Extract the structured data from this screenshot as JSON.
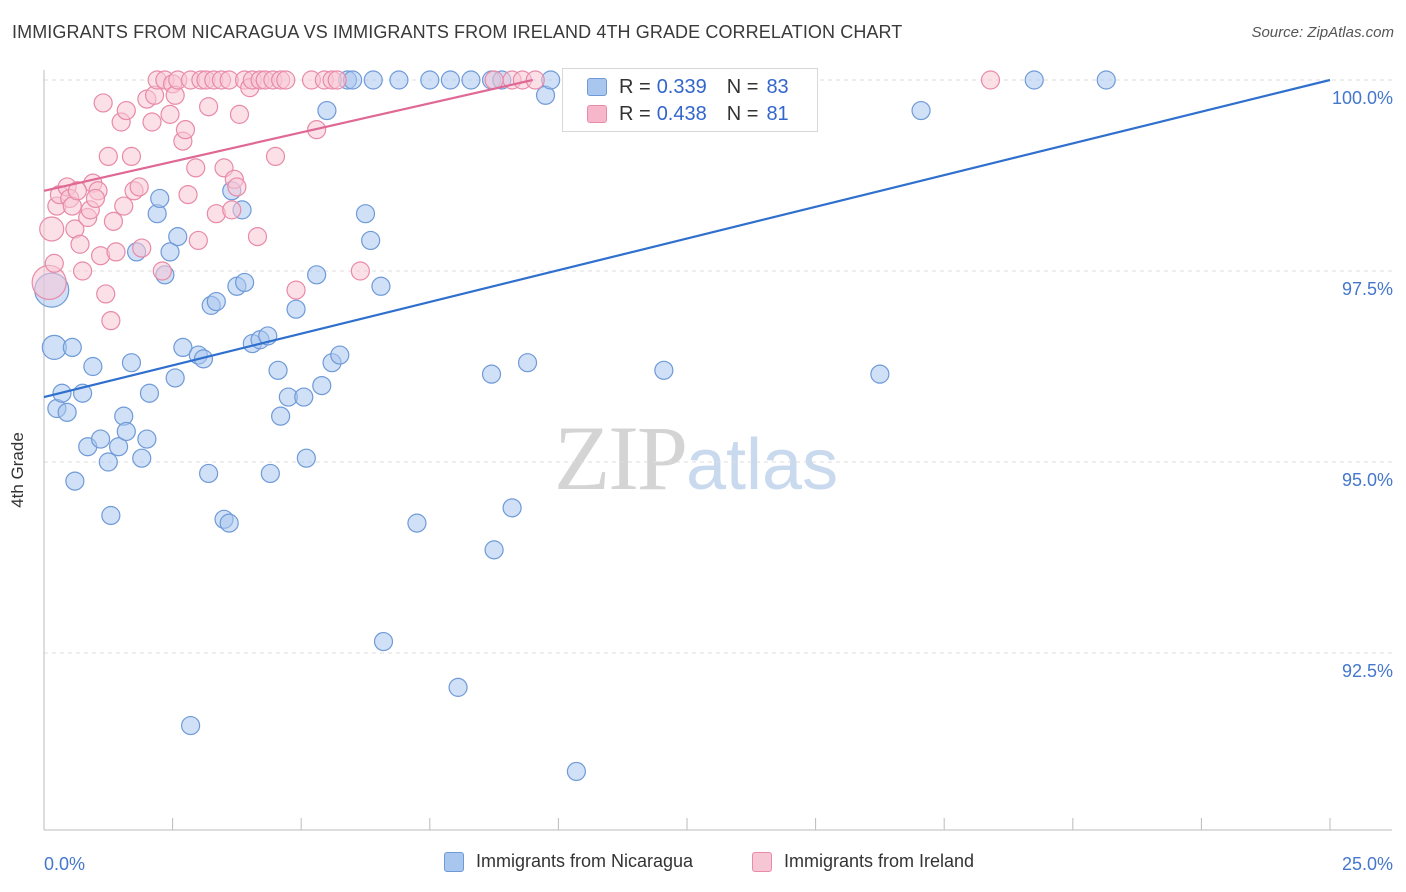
{
  "header": {
    "title": "IMMIGRANTS FROM NICARAGUA VS IMMIGRANTS FROM IRELAND 4TH GRADE CORRELATION CHART",
    "source": "Source: ZipAtlas.com"
  },
  "watermark": {
    "zip": "ZIP",
    "atlas": "atlas"
  },
  "legend": {
    "rows": [
      {
        "r_label": "R =",
        "r_value": "0.339",
        "n_label": "N =",
        "n_value": "83",
        "color": "#a9c6ef",
        "border": "#6f9ad8"
      },
      {
        "r_label": "R =",
        "r_value": "0.438",
        "n_label": "N =",
        "n_value": "81",
        "color": "#f7b7cb",
        "border": "#e88aa8"
      }
    ]
  },
  "bottom_legend": [
    {
      "label": "Immigrants from Nicaragua",
      "color": "#a9c6ef",
      "border": "#6f9ad8"
    },
    {
      "label": "Immigrants from Ireland",
      "color": "#f7c6d5",
      "border": "#e88aa8"
    }
  ],
  "chart_data": {
    "type": "scatter",
    "title": "IMMIGRANTS FROM NICARAGUA VS IMMIGRANTS FROM IRELAND 4TH GRADE CORRELATION CHART",
    "xlabel": "",
    "ylabel": "4th Grade",
    "xlim": [
      0,
      25
    ],
    "ylim": [
      90.0,
      100.45
    ],
    "x_tick_labels": [
      {
        "value": 0,
        "label": "0.0%"
      },
      {
        "value": 25,
        "label": "25.0%"
      }
    ],
    "y_tick_labels": [
      {
        "value": 100.0,
        "label": "100.0%"
      },
      {
        "value": 97.5,
        "label": "97.5%"
      },
      {
        "value": 95.0,
        "label": "95.0%"
      },
      {
        "value": 92.5,
        "label": "92.5%"
      }
    ],
    "series": [
      {
        "name": "Immigrants from Nicaragua",
        "color": "#6f9ad8",
        "fill": "#a9c6ef",
        "trend": {
          "x": [
            0,
            25
          ],
          "y": [
            95.85,
            100.0
          ],
          "color": "#2f6fce"
        },
        "points": [
          [
            0.15,
            97.25,
            3
          ],
          [
            0.2,
            96.5,
            2
          ],
          [
            0.25,
            95.7,
            1
          ],
          [
            0.35,
            95.9,
            1
          ],
          [
            0.45,
            95.65,
            1
          ],
          [
            0.55,
            96.5,
            1
          ],
          [
            0.6,
            94.75,
            1
          ],
          [
            0.75,
            95.9,
            1
          ],
          [
            0.85,
            95.2,
            1
          ],
          [
            0.95,
            96.25,
            1
          ],
          [
            1.1,
            95.3,
            1
          ],
          [
            1.25,
            95.0,
            1
          ],
          [
            1.3,
            94.3,
            1
          ],
          [
            1.45,
            95.2,
            1
          ],
          [
            1.55,
            95.6,
            1
          ],
          [
            1.6,
            95.4,
            1
          ],
          [
            1.7,
            96.3,
            1
          ],
          [
            1.8,
            97.75,
            1
          ],
          [
            1.9,
            95.05,
            1
          ],
          [
            2.0,
            95.3,
            1
          ],
          [
            2.05,
            95.9,
            1
          ],
          [
            2.2,
            98.25,
            1
          ],
          [
            2.25,
            98.45,
            1
          ],
          [
            2.35,
            97.45,
            1
          ],
          [
            2.45,
            97.75,
            1
          ],
          [
            2.55,
            96.1,
            1
          ],
          [
            2.6,
            97.95,
            1
          ],
          [
            2.7,
            96.5,
            1
          ],
          [
            2.85,
            91.55,
            1
          ],
          [
            3.0,
            96.4,
            1
          ],
          [
            3.1,
            96.35,
            1
          ],
          [
            3.2,
            94.85,
            1
          ],
          [
            3.25,
            97.05,
            1
          ],
          [
            3.35,
            97.1,
            1
          ],
          [
            3.5,
            94.25,
            1
          ],
          [
            3.6,
            94.2,
            1
          ],
          [
            3.65,
            98.55,
            1
          ],
          [
            3.75,
            97.3,
            1
          ],
          [
            3.85,
            98.3,
            1
          ],
          [
            3.9,
            97.35,
            1
          ],
          [
            4.05,
            96.55,
            1
          ],
          [
            4.2,
            96.6,
            1
          ],
          [
            4.35,
            96.65,
            1
          ],
          [
            4.4,
            94.85,
            1
          ],
          [
            4.55,
            96.2,
            1
          ],
          [
            4.6,
            95.6,
            1
          ],
          [
            4.75,
            95.85,
            1
          ],
          [
            4.9,
            97.0,
            1
          ],
          [
            5.05,
            95.85,
            1
          ],
          [
            5.1,
            95.05,
            1
          ],
          [
            5.3,
            97.45,
            1
          ],
          [
            5.4,
            96.0,
            1
          ],
          [
            5.5,
            99.6,
            1
          ],
          [
            5.6,
            96.3,
            1
          ],
          [
            5.75,
            96.4,
            1
          ],
          [
            5.9,
            100.0,
            1
          ],
          [
            6.0,
            100.0,
            1
          ],
          [
            6.25,
            98.25,
            1
          ],
          [
            6.35,
            97.9,
            1
          ],
          [
            6.55,
            97.3,
            1
          ],
          [
            6.6,
            92.65,
            1
          ],
          [
            6.4,
            100.0,
            1
          ],
          [
            6.9,
            100.0,
            1
          ],
          [
            7.25,
            94.2,
            1
          ],
          [
            7.5,
            100.0,
            1
          ],
          [
            7.9,
            100.0,
            1
          ],
          [
            8.05,
            92.05,
            1
          ],
          [
            8.3,
            100.0,
            1
          ],
          [
            8.7,
            100.0,
            1
          ],
          [
            8.7,
            96.15,
            1
          ],
          [
            8.9,
            100.0,
            1
          ],
          [
            8.75,
            93.85,
            1
          ],
          [
            9.1,
            94.4,
            1
          ],
          [
            9.4,
            96.3,
            1
          ],
          [
            9.75,
            99.8,
            1
          ],
          [
            9.85,
            100.0,
            1
          ],
          [
            10.35,
            90.95,
            1
          ],
          [
            12.05,
            96.2,
            1
          ],
          [
            16.25,
            96.15,
            1
          ],
          [
            17.05,
            99.6,
            1
          ],
          [
            19.25,
            100.0,
            1
          ],
          [
            20.65,
            100.0,
            1
          ]
        ]
      },
      {
        "name": "Immigrants from Ireland",
        "color": "#e88aa8",
        "fill": "#f7c6d5",
        "trend": {
          "x": [
            0,
            9.5
          ],
          "y": [
            98.55,
            100.0
          ],
          "color": "#e06894"
        },
        "points": [
          [
            0.1,
            97.35,
            3
          ],
          [
            0.15,
            98.05,
            2
          ],
          [
            0.25,
            98.35,
            1
          ],
          [
            0.3,
            98.5,
            1
          ],
          [
            0.45,
            98.6,
            1
          ],
          [
            0.5,
            98.45,
            1
          ],
          [
            0.55,
            98.35,
            1
          ],
          [
            0.6,
            98.05,
            1
          ],
          [
            0.7,
            97.85,
            1
          ],
          [
            0.75,
            97.5,
            1
          ],
          [
            0.85,
            98.2,
            1
          ],
          [
            0.9,
            98.3,
            1
          ],
          [
            0.95,
            98.65,
            1
          ],
          [
            1.05,
            98.55,
            1
          ],
          [
            1.1,
            97.7,
            1
          ],
          [
            1.2,
            97.2,
            1
          ],
          [
            1.25,
            99.0,
            1
          ],
          [
            1.3,
            96.85,
            1
          ],
          [
            1.4,
            97.75,
            1
          ],
          [
            1.55,
            98.35,
            1
          ],
          [
            1.5,
            99.45,
            1
          ],
          [
            1.6,
            99.6,
            1
          ],
          [
            1.7,
            99.0,
            1
          ],
          [
            1.75,
            98.55,
            1
          ],
          [
            1.85,
            98.6,
            1
          ],
          [
            1.9,
            97.8,
            1
          ],
          [
            2.0,
            99.75,
            1
          ],
          [
            2.1,
            99.45,
            1
          ],
          [
            2.15,
            99.8,
            1
          ],
          [
            2.2,
            100.0,
            1
          ],
          [
            2.35,
            100.0,
            1
          ],
          [
            2.45,
            99.55,
            1
          ],
          [
            2.5,
            99.95,
            1
          ],
          [
            2.55,
            99.8,
            1
          ],
          [
            2.6,
            100.0,
            1
          ],
          [
            2.7,
            99.2,
            1
          ],
          [
            2.8,
            98.5,
            1
          ],
          [
            2.85,
            100.0,
            1
          ],
          [
            2.95,
            98.85,
            1
          ],
          [
            3.0,
            97.9,
            1
          ],
          [
            3.05,
            100.0,
            1
          ],
          [
            3.15,
            100.0,
            1
          ],
          [
            3.2,
            99.65,
            1
          ],
          [
            3.3,
            100.0,
            1
          ],
          [
            3.35,
            98.25,
            1
          ],
          [
            3.45,
            100.0,
            1
          ],
          [
            3.5,
            98.85,
            1
          ],
          [
            3.6,
            100.0,
            1
          ],
          [
            3.65,
            98.3,
            1
          ],
          [
            3.7,
            98.7,
            1
          ],
          [
            3.75,
            98.6,
            1
          ],
          [
            3.8,
            99.55,
            1
          ],
          [
            3.9,
            100.0,
            1
          ],
          [
            4.0,
            99.9,
            1
          ],
          [
            4.05,
            100.0,
            1
          ],
          [
            4.2,
            100.0,
            1
          ],
          [
            4.3,
            100.0,
            1
          ],
          [
            4.45,
            100.0,
            1
          ],
          [
            4.5,
            99.0,
            1
          ],
          [
            4.6,
            100.0,
            1
          ],
          [
            4.7,
            100.0,
            1
          ],
          [
            4.9,
            97.25,
            1
          ],
          [
            5.2,
            100.0,
            1
          ],
          [
            5.3,
            99.35,
            1
          ],
          [
            5.45,
            100.0,
            1
          ],
          [
            5.6,
            100.0,
            1
          ],
          [
            6.15,
            97.5,
            1
          ],
          [
            8.75,
            100.0,
            1
          ],
          [
            9.1,
            100.0,
            1
          ],
          [
            9.3,
            100.0,
            1
          ],
          [
            9.55,
            100.0,
            1
          ],
          [
            18.4,
            100.0,
            1
          ],
          [
            0.65,
            98.55,
            1
          ],
          [
            1.0,
            98.45,
            1
          ],
          [
            2.3,
            97.5,
            1
          ],
          [
            1.15,
            99.7,
            1
          ],
          [
            1.35,
            98.15,
            1
          ],
          [
            0.2,
            97.6,
            1
          ],
          [
            2.75,
            99.35,
            1
          ],
          [
            4.15,
            97.95,
            1
          ],
          [
            5.7,
            100.0,
            1
          ]
        ]
      }
    ]
  }
}
